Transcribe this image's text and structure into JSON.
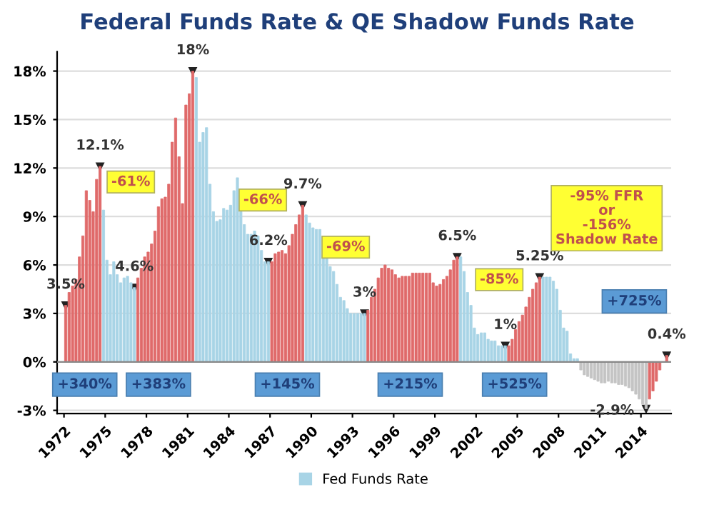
{
  "chart_data": {
    "type": "bar",
    "title": "Federal Funds Rate & QE Shadow Funds Rate",
    "xlim": [
      1971.5,
      2016.2
    ],
    "xticks": [
      1972,
      1975,
      1978,
      1981,
      1984,
      1987,
      1990,
      1993,
      1996,
      1999,
      2002,
      2005,
      2008,
      2011,
      2014
    ],
    "ylim": [
      -3.2,
      19.2
    ],
    "yticks": [
      {
        "value": -3,
        "label": "-3%"
      },
      {
        "value": 0,
        "label": "0%"
      },
      {
        "value": 3,
        "label": "3%"
      },
      {
        "value": 6,
        "label": "6%"
      },
      {
        "value": 9,
        "label": "9%"
      },
      {
        "value": 12,
        "label": "12%"
      },
      {
        "value": 15,
        "label": "15%"
      },
      {
        "value": 18,
        "label": "18%"
      }
    ],
    "grid": "y",
    "legend": "bottom",
    "series": [
      {
        "name": "Fed Funds Rate",
        "color": "#a8d4e6",
        "x": [
          1972.125,
          1972.375,
          1972.625,
          1972.875,
          1973.125,
          1973.375,
          1973.625,
          1973.875,
          1974.125,
          1974.375,
          1974.625,
          1974.875,
          1975.125,
          1975.375,
          1975.625,
          1975.875,
          1976.125,
          1976.375,
          1976.625,
          1976.875,
          1977.125,
          1977.375,
          1977.625,
          1977.875,
          1978.125,
          1978.375,
          1978.625,
          1978.875,
          1979.125,
          1979.375,
          1979.625,
          1979.875,
          1980.125,
          1980.375,
          1980.625,
          1980.875,
          1981.125,
          1981.375,
          1981.625,
          1981.875,
          1982.125,
          1982.375,
          1982.625,
          1982.875,
          1983.125,
          1983.375,
          1983.625,
          1983.875,
          1984.125,
          1984.375,
          1984.625,
          1984.875,
          1985.125,
          1985.375,
          1985.625,
          1985.875,
          1986.125,
          1986.375,
          1986.625,
          1986.875,
          1987.125,
          1987.375,
          1987.625,
          1987.875,
          1988.125,
          1988.375,
          1988.625,
          1988.875,
          1989.125,
          1989.375,
          1989.625,
          1989.875,
          1990.125,
          1990.375,
          1990.625,
          1990.875,
          1991.125,
          1991.375,
          1991.625,
          1991.875,
          1992.125,
          1992.375,
          1992.625,
          1992.875,
          1993.125,
          1993.375,
          1993.625,
          1993.875,
          1994.125,
          1994.375,
          1994.625,
          1994.875,
          1995.125,
          1995.375,
          1995.625,
          1995.875,
          1996.125,
          1996.375,
          1996.625,
          1996.875,
          1997.125,
          1997.375,
          1997.625,
          1997.875,
          1998.125,
          1998.375,
          1998.625,
          1998.875,
          1999.125,
          1999.375,
          1999.625,
          1999.875,
          2000.125,
          2000.375,
          2000.625,
          2000.875,
          2001.125,
          2001.375,
          2001.625,
          2001.875,
          2002.125,
          2002.375,
          2002.625,
          2002.875,
          2003.125,
          2003.375,
          2003.625,
          2003.875,
          2004.125,
          2004.375,
          2004.625,
          2004.875,
          2005.125,
          2005.375,
          2005.625,
          2005.875,
          2006.125,
          2006.375,
          2006.625,
          2006.875,
          2007.125,
          2007.375,
          2007.625,
          2007.875,
          2008.125,
          2008.375,
          2008.625,
          2008.875,
          2009.125,
          2009.375,
          2009.625,
          2009.875,
          2010.125,
          2010.375,
          2010.625,
          2010.875,
          2011.125,
          2011.375,
          2011.625,
          2011.875,
          2012.125,
          2012.375,
          2012.625,
          2012.875,
          2013.125,
          2013.375,
          2013.625,
          2013.875,
          2014.125,
          2014.375,
          2014.625,
          2014.875,
          2015.125,
          2015.375,
          2015.625,
          2015.875
        ],
        "values": [
          3.5,
          4.3,
          4.7,
          5.1,
          6.5,
          7.8,
          10.6,
          10.0,
          9.3,
          11.3,
          12.1,
          9.4,
          6.3,
          5.4,
          6.2,
          5.4,
          4.9,
          5.2,
          5.3,
          4.9,
          4.6,
          5.2,
          5.8,
          6.5,
          6.8,
          7.3,
          8.1,
          9.6,
          10.1,
          10.2,
          11.0,
          13.6,
          15.1,
          12.7,
          9.8,
          15.9,
          16.6,
          18.0,
          17.6,
          13.6,
          14.2,
          14.5,
          11.0,
          9.3,
          8.7,
          8.8,
          9.5,
          9.4,
          9.7,
          10.6,
          11.4,
          9.3,
          8.5,
          7.9,
          7.9,
          8.1,
          7.8,
          6.9,
          6.2,
          6.2,
          6.2,
          6.7,
          6.8,
          6.9,
          6.7,
          7.2,
          7.9,
          8.5,
          9.1,
          9.7,
          9.1,
          8.6,
          8.3,
          8.2,
          8.2,
          7.7,
          6.4,
          5.9,
          5.6,
          4.8,
          4.0,
          3.8,
          3.3,
          3.0,
          3.0,
          3.0,
          3.0,
          3.0,
          3.2,
          4.0,
          4.5,
          5.2,
          5.8,
          6.0,
          5.8,
          5.7,
          5.4,
          5.2,
          5.3,
          5.3,
          5.3,
          5.5,
          5.5,
          5.5,
          5.5,
          5.5,
          5.5,
          4.9,
          4.7,
          4.8,
          5.1,
          5.3,
          5.7,
          6.3,
          6.5,
          6.5,
          5.6,
          4.3,
          3.5,
          2.1,
          1.7,
          1.8,
          1.8,
          1.4,
          1.3,
          1.3,
          1.0,
          1.0,
          1.0,
          1.0,
          1.4,
          2.0,
          2.5,
          2.9,
          3.4,
          4.0,
          4.5,
          4.9,
          5.25,
          5.25,
          5.25,
          5.25,
          5.0,
          4.5,
          3.2,
          2.1,
          1.9,
          0.5,
          0.2,
          0.2,
          -0.5,
          -0.8,
          -0.9,
          -1.0,
          -1.1,
          -1.2,
          -1.3,
          -1.3,
          -1.2,
          -1.3,
          -1.3,
          -1.4,
          -1.4,
          -1.5,
          -1.6,
          -1.8,
          -2.0,
          -2.3,
          -2.6,
          -2.9,
          -2.3,
          -1.8,
          -1.2,
          -0.5,
          0.0,
          0.4
        ],
        "colors": [
          "#e06a6a",
          "#e06a6a",
          "#e06a6a",
          "#e06a6a",
          "#e06a6a",
          "#e06a6a",
          "#e06a6a",
          "#e06a6a",
          "#e06a6a",
          "#e06a6a",
          "#e06a6a",
          "#a8d4e6",
          "#a8d4e6",
          "#a8d4e6",
          "#a8d4e6",
          "#a8d4e6",
          "#a8d4e6",
          "#a8d4e6",
          "#a8d4e6",
          "#a8d4e6",
          "#a8d4e6",
          "#e06a6a",
          "#e06a6a",
          "#e06a6a",
          "#e06a6a",
          "#e06a6a",
          "#e06a6a",
          "#e06a6a",
          "#e06a6a",
          "#e06a6a",
          "#e06a6a",
          "#e06a6a",
          "#e06a6a",
          "#e06a6a",
          "#e06a6a",
          "#e06a6a",
          "#e06a6a",
          "#e06a6a",
          "#a8d4e6",
          "#a8d4e6",
          "#a8d4e6",
          "#a8d4e6",
          "#a8d4e6",
          "#a8d4e6",
          "#a8d4e6",
          "#a8d4e6",
          "#a8d4e6",
          "#a8d4e6",
          "#a8d4e6",
          "#a8d4e6",
          "#a8d4e6",
          "#a8d4e6",
          "#a8d4e6",
          "#a8d4e6",
          "#a8d4e6",
          "#a8d4e6",
          "#a8d4e6",
          "#a8d4e6",
          "#a8d4e6",
          "#a8d4e6",
          "#e06a6a",
          "#e06a6a",
          "#e06a6a",
          "#e06a6a",
          "#e06a6a",
          "#e06a6a",
          "#e06a6a",
          "#e06a6a",
          "#e06a6a",
          "#e06a6a",
          "#a8d4e6",
          "#a8d4e6",
          "#a8d4e6",
          "#a8d4e6",
          "#a8d4e6",
          "#a8d4e6",
          "#a8d4e6",
          "#a8d4e6",
          "#a8d4e6",
          "#a8d4e6",
          "#a8d4e6",
          "#a8d4e6",
          "#a8d4e6",
          "#a8d4e6",
          "#a8d4e6",
          "#a8d4e6",
          "#a8d4e6",
          "#a8d4e6",
          "#e06a6a",
          "#e06a6a",
          "#e06a6a",
          "#e06a6a",
          "#e06a6a",
          "#e06a6a",
          "#e06a6a",
          "#e06a6a",
          "#e06a6a",
          "#e06a6a",
          "#e06a6a",
          "#e06a6a",
          "#e06a6a",
          "#e06a6a",
          "#e06a6a",
          "#e06a6a",
          "#e06a6a",
          "#e06a6a",
          "#e06a6a",
          "#e06a6a",
          "#e06a6a",
          "#e06a6a",
          "#e06a6a",
          "#e06a6a",
          "#e06a6a",
          "#e06a6a",
          "#e06a6a",
          "#a8d4e6",
          "#a8d4e6",
          "#a8d4e6",
          "#a8d4e6",
          "#a8d4e6",
          "#a8d4e6",
          "#a8d4e6",
          "#a8d4e6",
          "#a8d4e6",
          "#a8d4e6",
          "#a8d4e6",
          "#a8d4e6",
          "#a8d4e6",
          "#a8d4e6",
          "#e06a6a",
          "#e06a6a",
          "#e06a6a",
          "#e06a6a",
          "#e06a6a",
          "#e06a6a",
          "#e06a6a",
          "#e06a6a",
          "#e06a6a",
          "#e06a6a",
          "#a8d4e6",
          "#a8d4e6",
          "#a8d4e6",
          "#a8d4e6",
          "#a8d4e6",
          "#a8d4e6",
          "#a8d4e6",
          "#a8d4e6",
          "#a8d4e6",
          "#a8d4e6",
          "#a8d4e6",
          "#c4c4c4",
          "#c4c4c4",
          "#c4c4c4",
          "#c4c4c4",
          "#c4c4c4",
          "#c4c4c4",
          "#c4c4c4",
          "#c4c4c4",
          "#c4c4c4",
          "#c4c4c4",
          "#c4c4c4",
          "#c4c4c4",
          "#c4c4c4",
          "#c4c4c4",
          "#c4c4c4",
          "#c4c4c4",
          "#c4c4c4",
          "#c4c4c4",
          "#c4c4c4",
          "#c4c4c4",
          "#e06a6a",
          "#e06a6a",
          "#e06a6a",
          "#e06a6a",
          "#e06a6a",
          "#e06a6a"
        ]
      }
    ],
    "annotations": [
      {
        "text": "3.5%",
        "x": 1972.125,
        "y": 3.5
      },
      {
        "text": "12.1%",
        "x": 1974.625,
        "y": 12.1
      },
      {
        "text": "4.6%",
        "x": 1977.125,
        "y": 4.6
      },
      {
        "text": "18%",
        "x": 1981.375,
        "y": 18.0
      },
      {
        "text": "6.2%",
        "x": 1986.875,
        "y": 6.2
      },
      {
        "text": "9.7%",
        "x": 1989.375,
        "y": 9.7
      },
      {
        "text": "3%",
        "x": 1993.875,
        "y": 3.0
      },
      {
        "text": "6.5%",
        "x": 2000.625,
        "y": 6.5
      },
      {
        "text": "1%",
        "x": 2004.125,
        "y": 1.0
      },
      {
        "text": "5.25%",
        "x": 2006.625,
        "y": 5.25
      },
      {
        "text": "-2.9%",
        "x": 2014.375,
        "y": -2.9
      },
      {
        "text": "0.4%",
        "x": 2015.875,
        "y": 0.4
      },
      "-61%",
      "-66%",
      "-69%",
      "-85%",
      "-95% FFR\nor\n-156%\nShadow Rate",
      "+340%",
      "+383%",
      "+145%",
      "+215%",
      "+525%",
      "+725%"
    ]
  }
}
